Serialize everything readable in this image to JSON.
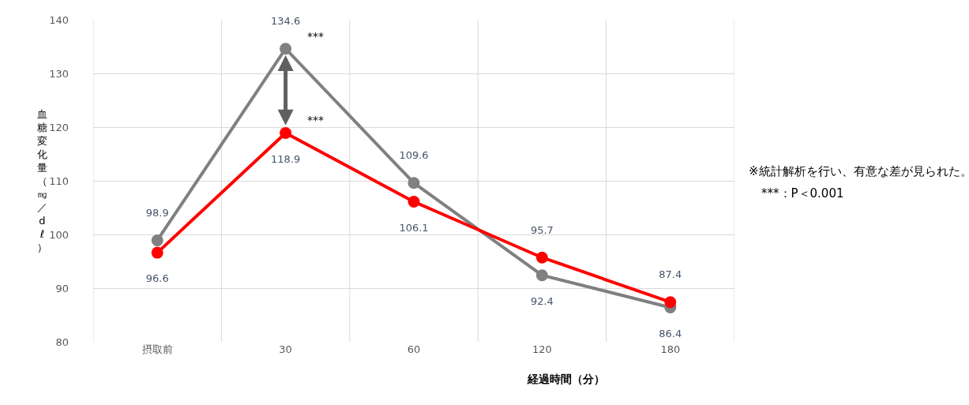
{
  "chart_data": {
    "type": "line",
    "categories": [
      "摂取前",
      "30",
      "60",
      "120",
      "180"
    ],
    "series": [
      {
        "color": "#808080",
        "values": [
          98.9,
          134.6,
          109.6,
          92.4,
          86.4
        ]
      },
      {
        "color": "#ff0000",
        "values": [
          96.6,
          118.9,
          106.1,
          95.7,
          87.4
        ]
      }
    ],
    "ylim": [
      80,
      140
    ],
    "yticks": [
      80,
      90,
      100,
      110,
      120,
      130,
      140
    ],
    "xlabel": "経過時間（分）",
    "ylabel": "血糖変化量（㎎／dℓ）",
    "annotations": [
      {
        "text": "***",
        "x": "30",
        "y": 134.6
      },
      {
        "text": "***",
        "x": "30",
        "y": 118.9
      },
      "※統計解析を行い、有意な差が見られた。",
      "***：P＜0.001"
    ],
    "data_labels": true,
    "grid": true,
    "marker": "circle",
    "line_style": "solid"
  }
}
